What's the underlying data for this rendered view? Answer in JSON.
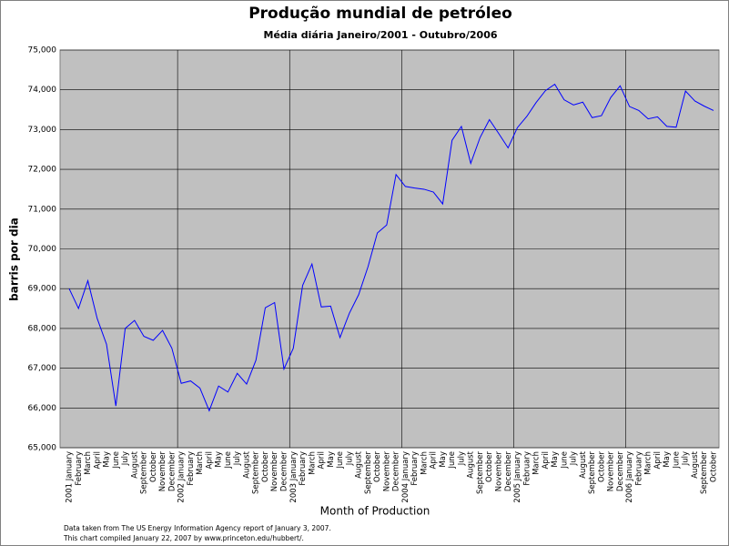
{
  "chart_data": {
    "type": "line",
    "title": "Produção mundial de petróleo",
    "subtitle": "Média diária Janeiro/2001 - Outubro/2006",
    "y_label": "barris por dia",
    "x_label": "Month of Production",
    "notes": [
      "Data taken from The US Energy Information Agency report of January 3, 2007.",
      "This chart compiled January 22, 2007 by www.princeton.edu/hubbert/."
    ],
    "categories": [
      "2001 January",
      "February",
      "March",
      "April",
      "May",
      "June",
      "July",
      "August",
      "September",
      "October",
      "November",
      "December",
      "2002 January",
      "February",
      "March",
      "April",
      "May",
      "June",
      "July",
      "August",
      "September",
      "October",
      "November",
      "December",
      "2003 January",
      "February",
      "March",
      "April",
      "May",
      "June",
      "July",
      "August",
      "September",
      "October",
      "November",
      "December",
      "2004 January",
      "February",
      "March",
      "April",
      "May",
      "June",
      "July",
      "August",
      "September",
      "October",
      "November",
      "December",
      "2005 January",
      "February",
      "March",
      "April",
      "May",
      "June",
      "July",
      "August",
      "September",
      "October",
      "November",
      "December",
      "2006 January",
      "February",
      "March",
      "April",
      "May",
      "June",
      "July",
      "August",
      "September",
      "October"
    ],
    "values": [
      69000,
      68500,
      69200,
      68250,
      67600,
      66050,
      68000,
      68200,
      67800,
      67700,
      67950,
      67500,
      66620,
      66680,
      66500,
      65930,
      66550,
      66400,
      66870,
      66600,
      67200,
      68520,
      68650,
      66980,
      67500,
      69080,
      69620,
      68540,
      68560,
      67770,
      68380,
      68850,
      69550,
      70400,
      70600,
      71870,
      71570,
      71530,
      71500,
      71430,
      71130,
      72730,
      73080,
      72150,
      72800,
      73250,
      72900,
      72540,
      73050,
      73330,
      73680,
      73980,
      74140,
      73750,
      73620,
      73690,
      73300,
      73350,
      73810,
      74100,
      73580,
      73480,
      73270,
      73320,
      73080,
      73060,
      73970,
      73720,
      73590,
      73480
    ],
    "color": "#0000ff",
    "ylim": [
      65000,
      75000
    ],
    "yticks": [
      {
        "value": 65000,
        "label": "65,000"
      },
      {
        "value": 66000,
        "label": "66,000"
      },
      {
        "value": 67000,
        "label": "67,000"
      },
      {
        "value": 68000,
        "label": "68,000"
      },
      {
        "value": 69000,
        "label": "69,000"
      },
      {
        "value": 70000,
        "label": "70,000"
      },
      {
        "value": 71000,
        "label": "71,000"
      },
      {
        "value": 72000,
        "label": "72,000"
      },
      {
        "value": 73000,
        "label": "73,000"
      },
      {
        "value": 74000,
        "label": "74,000"
      },
      {
        "value": 75000,
        "label": "75,000"
      }
    ],
    "grid": true
  }
}
